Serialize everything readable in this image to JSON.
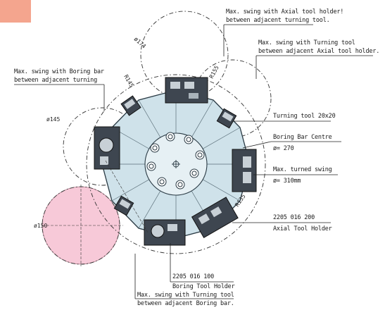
{
  "labels": {
    "axial_holder_swing_1": "Max. swing with Axial tool holder!",
    "axial_holder_swing_2": "between adjacent turning tool.",
    "turning_swing_axial_1": "Max. swing with Turning tool",
    "turning_swing_axial_2": "between adjacent Axial tool holder.",
    "boring_swing_1": "Max. swing with Boring bar",
    "boring_swing_2": "between adjacent turning",
    "turning_tool": "Turning tool 20x20",
    "boring_centre_1": "Boring Bar Centre",
    "boring_centre_2": "ø= 270",
    "turned_swing_1": "Max. turned swing",
    "turned_swing_2": "ø= 310mm",
    "axial_holder_1": "2205 016 200",
    "axial_holder_2": "Axial Tool Holder",
    "boring_holder_1": "2205 016 100",
    "boring_holder_2": "Boring Tool Holder",
    "turning_swing_boring_1": "Max. swing with Turning tool",
    "turning_swing_boring_2": "between adjacent Boring bar."
  },
  "dimensions": {
    "d174": "ø174",
    "r145": "R145",
    "r155": "R155",
    "d145": "ø145",
    "r135": "R135",
    "d150": "ø150"
  },
  "colors": {
    "turret": "#cfe2ea",
    "pink_circle": "#f7c9d8",
    "holder": "#3e4650",
    "tag_box": "#f4a58e"
  }
}
